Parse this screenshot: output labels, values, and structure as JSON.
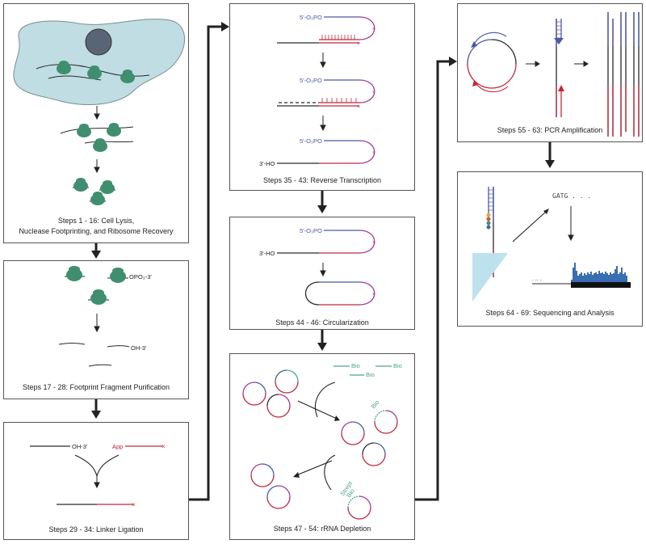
{
  "colors": {
    "ribosome": "#3f8f6e",
    "cell": "#bfdde2",
    "nucleus": "#596474",
    "rna": "#2a2a2a",
    "linker": "#c0283a",
    "rt_primer": "#4a58a6",
    "hairpin": "#a03c98",
    "biotin": "#4aa58c",
    "seq_fill": "#bde2ee",
    "coverage": "#3b6db3"
  },
  "steps": {
    "s1": {
      "caption_line1": "Steps 1 - 16: Cell Lysis,",
      "caption_line2": "Nuclease Footprinting, and Ribosome Recovery"
    },
    "s2": {
      "caption": "Steps 17 - 28: Footprint Fragment Purification",
      "label_opo3": "OPO₃-3'",
      "label_oh": "OH-3'"
    },
    "s3": {
      "caption": "Steps 29 - 34: Linker Ligation",
      "label_oh": "OH-3'",
      "label_app": "App"
    },
    "s4": {
      "caption": "Steps 35 - 43: Reverse Transcription",
      "label_5p": "5'-O₃PO",
      "label_3ho": "3'-HO"
    },
    "s5": {
      "caption": "Steps 44 - 46: Circularization",
      "label_5p": "5'-O₃PO",
      "label_3ho": "3'-HO"
    },
    "s6": {
      "caption": "Steps 47 - 54: rRNA Depletion",
      "label_bio": "Bio",
      "label_strept": "Strept"
    },
    "s7": {
      "caption": "Steps 55 - 63: PCR Amplification"
    },
    "s8": {
      "caption": "Steps 64 - 69: Sequencing and Analysis",
      "seq_read": "GATG . . .",
      "dots": ". ..  ."
    }
  }
}
